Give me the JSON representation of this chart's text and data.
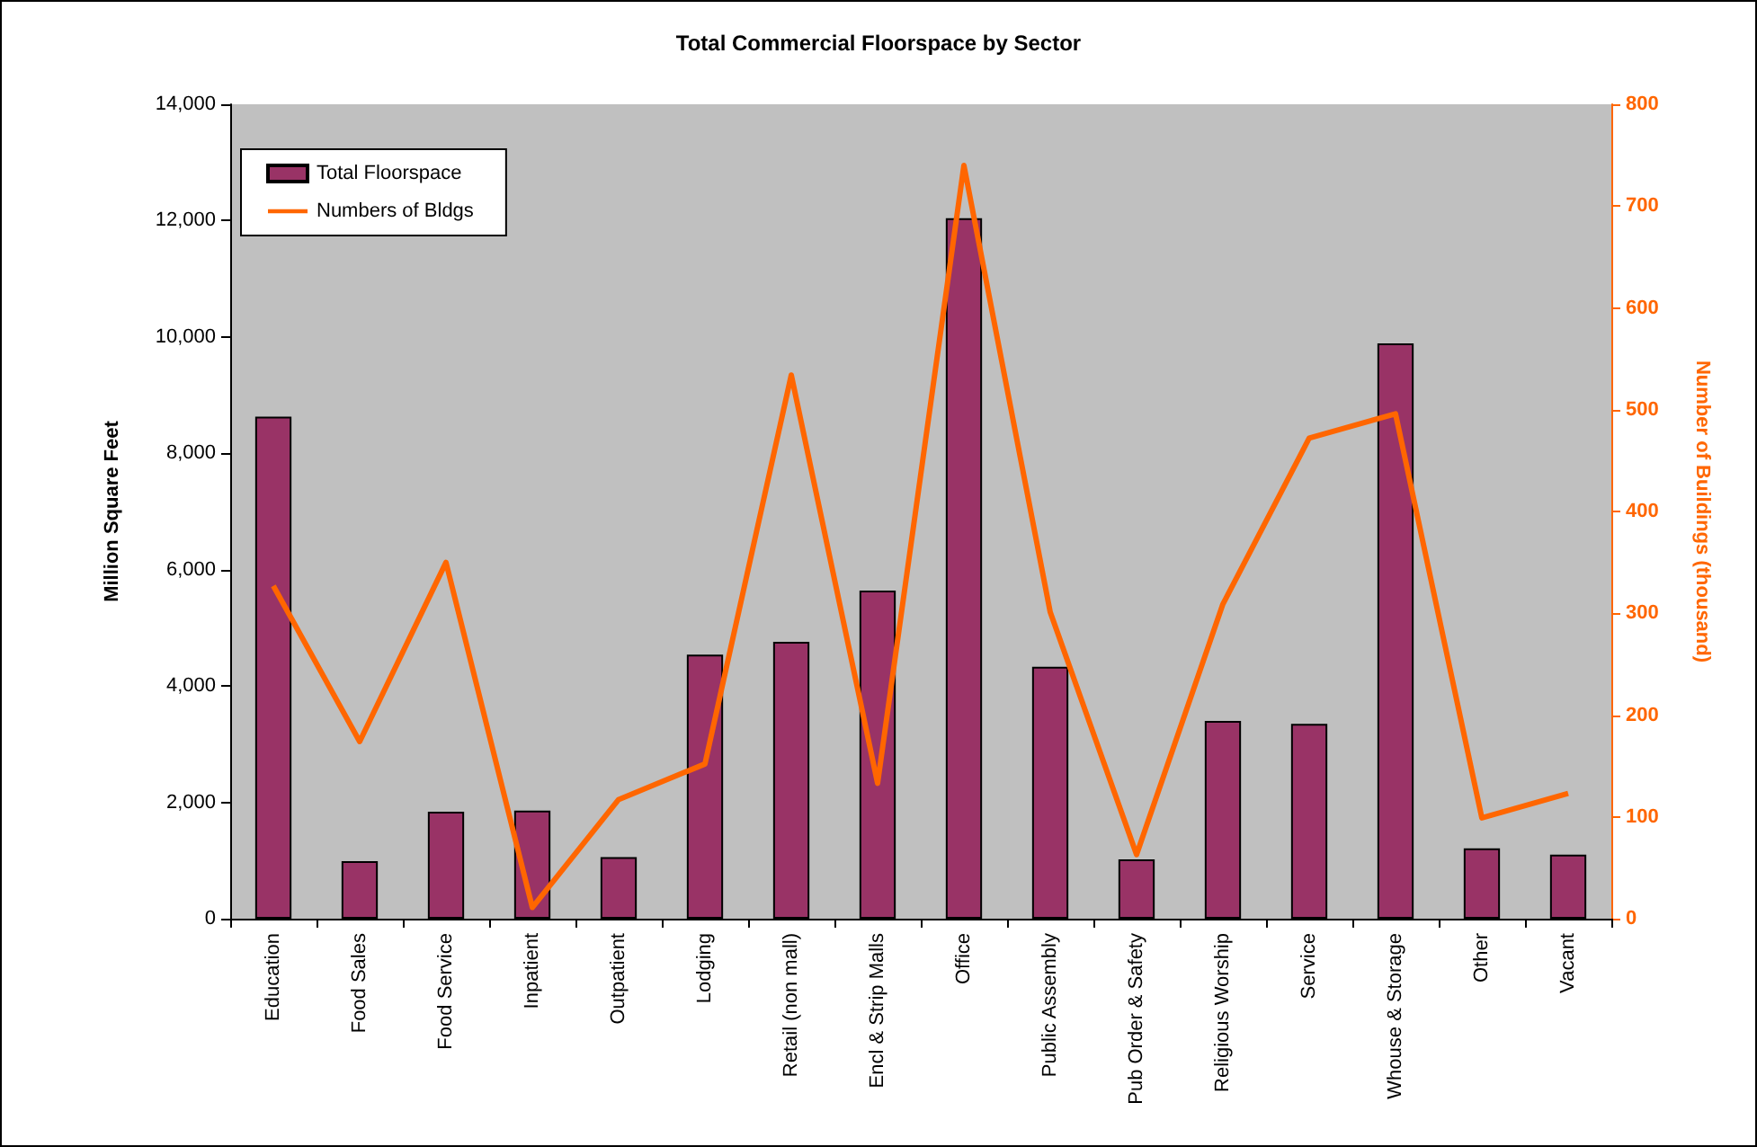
{
  "chart_data": {
    "type": "bar",
    "title": "Total Commercial Floorspace by Sector",
    "ylabel": "Million Square Feet",
    "y2label": "Number of Buildings (thousand)",
    "categories": [
      "Education",
      "Food Sales",
      "Food Service",
      "Inpatient",
      "Outpatient",
      "Lodging",
      "Retail (non mall)",
      "Encl & Strip Malls",
      "Office",
      "Public Assembly",
      "Pub Order & Safety",
      "Religious Worship",
      "Service",
      "Whouse & Storage",
      "Other",
      "Vacant"
    ],
    "series": [
      {
        "name": "Total Floorspace",
        "color": "#993366",
        "values": [
          8630,
          990,
          1840,
          1860,
          1060,
          4540,
          4760,
          5640,
          12040,
          4330,
          1020,
          3400,
          3350,
          9890,
          1210,
          1100
        ]
      },
      {
        "name": "Numbers of Bldgs",
        "type": "line",
        "axis": "y2",
        "color": "#ff6600",
        "values": [
          327,
          174,
          350,
          11,
          117,
          152,
          534,
          133,
          740,
          301,
          63,
          309,
          472,
          496,
          99,
          123
        ]
      }
    ],
    "ylim": [
      0,
      14000
    ],
    "yticks": [
      0,
      {
        "value": 2000,
        "label": "2,000"
      },
      {
        "value": 4000,
        "label": "4,000"
      },
      {
        "value": 6000,
        "label": "6,000"
      },
      {
        "value": 8000,
        "label": "8,000"
      },
      {
        "value": 10000,
        "label": "10,000"
      },
      {
        "value": 12000,
        "label": "12,000"
      },
      {
        "value": 14000,
        "label": "14,000"
      }
    ],
    "y2lim": [
      0,
      800
    ],
    "y2ticks": [
      0,
      100,
      200,
      300,
      400,
      500,
      600,
      700,
      800
    ],
    "grid": false,
    "legend": "top left",
    "marker": "none",
    "line_style": "solid"
  }
}
